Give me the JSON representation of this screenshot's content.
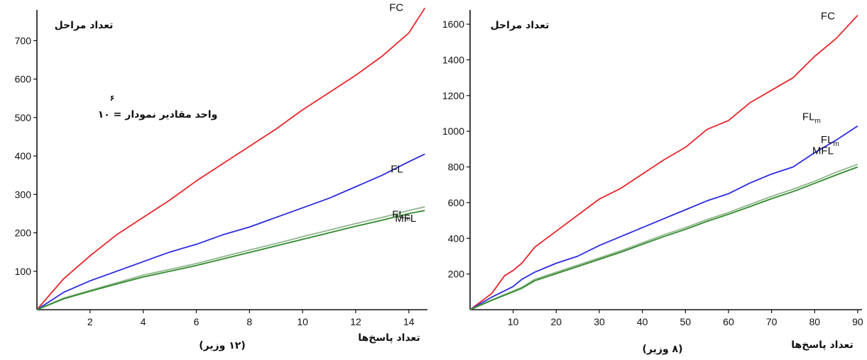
{
  "chart_data": [
    {
      "type": "line",
      "title": "",
      "ylabel": "تعداد مراحل",
      "xlabel": "تعداد پاسخ‌ها",
      "caption": "(۱۲ وزیر)",
      "note": "واحد مقادیر نمودار = ۱۰",
      "note_exponent": "۶",
      "xlim": [
        0,
        14.7
      ],
      "ylim": [
        0,
        780
      ],
      "xticks": [
        2,
        4,
        6,
        8,
        10,
        12,
        14
      ],
      "yticks": [
        100,
        200,
        300,
        400,
        500,
        600,
        700
      ],
      "grid": false,
      "series": [
        {
          "name": "FC",
          "color": "#e8252b",
          "x": [
            0,
            1,
            2,
            3,
            4,
            5,
            6,
            7,
            8,
            9,
            10,
            11,
            12,
            13,
            14,
            14.6
          ],
          "y": [
            0,
            80,
            140,
            195,
            240,
            285,
            335,
            380,
            425,
            470,
            520,
            565,
            610,
            660,
            720,
            785
          ]
        },
        {
          "name": "FL",
          "color": "#2a2ae0",
          "x": [
            0,
            1,
            2,
            3,
            4,
            5,
            6,
            7,
            8,
            9,
            10,
            11,
            12,
            13,
            14,
            14.6
          ],
          "y": [
            0,
            45,
            75,
            100,
            125,
            150,
            170,
            195,
            215,
            240,
            265,
            290,
            320,
            350,
            385,
            405
          ]
        },
        {
          "name": "FL",
          "subscript": "m",
          "color": "#8fb48c",
          "x": [
            0,
            1,
            2,
            3,
            4,
            5,
            6,
            7,
            8,
            9,
            10,
            11,
            12,
            13,
            14,
            14.6
          ],
          "y": [
            0,
            30,
            50,
            70,
            90,
            105,
            120,
            138,
            155,
            172,
            190,
            207,
            224,
            240,
            258,
            268
          ]
        },
        {
          "name": "MFL",
          "color": "#2f8a2a",
          "x": [
            0,
            1,
            2,
            3,
            4,
            5,
            6,
            7,
            8,
            9,
            10,
            11,
            12,
            13,
            14,
            14.6
          ],
          "y": [
            0,
            28,
            48,
            67,
            85,
            100,
            115,
            132,
            149,
            166,
            183,
            200,
            217,
            233,
            250,
            258
          ]
        }
      ]
    },
    {
      "type": "line",
      "title": "",
      "ylabel": "تعداد مراحل",
      "xlabel": "تعداد پاسخ‌ها",
      "caption": "(۸ وزیر)",
      "xlim": [
        0,
        91
      ],
      "ylim": [
        0,
        1680
      ],
      "xticks": [
        10,
        20,
        30,
        40,
        50,
        60,
        70,
        80,
        90
      ],
      "yticks": [
        200,
        400,
        600,
        800,
        1000,
        1200,
        1400,
        1600
      ],
      "grid": false,
      "series": [
        {
          "name": "FC",
          "color": "#e8252b",
          "x": [
            0,
            5,
            8,
            10,
            12,
            15,
            20,
            25,
            30,
            35,
            40,
            45,
            50,
            55,
            60,
            65,
            70,
            75,
            80,
            85,
            90
          ],
          "y": [
            0,
            90,
            190,
            220,
            260,
            350,
            440,
            530,
            620,
            680,
            760,
            840,
            910,
            1010,
            1060,
            1160,
            1230,
            1300,
            1420,
            1520,
            1650
          ]
        },
        {
          "name": "FL",
          "subscript": "m",
          "color": "#2a2ae0",
          "x": [
            0,
            5,
            10,
            12,
            15,
            20,
            25,
            30,
            35,
            40,
            45,
            50,
            55,
            60,
            65,
            70,
            75,
            80,
            85,
            90
          ],
          "y": [
            0,
            70,
            130,
            170,
            210,
            260,
            300,
            360,
            410,
            460,
            510,
            560,
            610,
            650,
            710,
            760,
            800,
            880,
            950,
            1030
          ]
        },
        {
          "name": "FL",
          "subscript": "m",
          "color": "#8fb48c",
          "x": [
            0,
            5,
            10,
            12,
            15,
            20,
            25,
            30,
            35,
            40,
            45,
            50,
            55,
            60,
            65,
            70,
            75,
            80,
            85,
            90
          ],
          "y": [
            0,
            55,
            105,
            125,
            170,
            210,
            250,
            290,
            330,
            375,
            420,
            460,
            505,
            545,
            590,
            635,
            675,
            720,
            770,
            815
          ]
        },
        {
          "name": "MFL",
          "color": "#2f8a2a",
          "x": [
            0,
            5,
            10,
            12,
            15,
            20,
            25,
            30,
            35,
            40,
            45,
            50,
            55,
            60,
            65,
            70,
            75,
            80,
            85,
            90
          ],
          "y": [
            0,
            52,
            100,
            120,
            162,
            202,
            242,
            282,
            322,
            366,
            410,
            450,
            495,
            535,
            578,
            622,
            662,
            708,
            755,
            800
          ]
        }
      ]
    }
  ]
}
